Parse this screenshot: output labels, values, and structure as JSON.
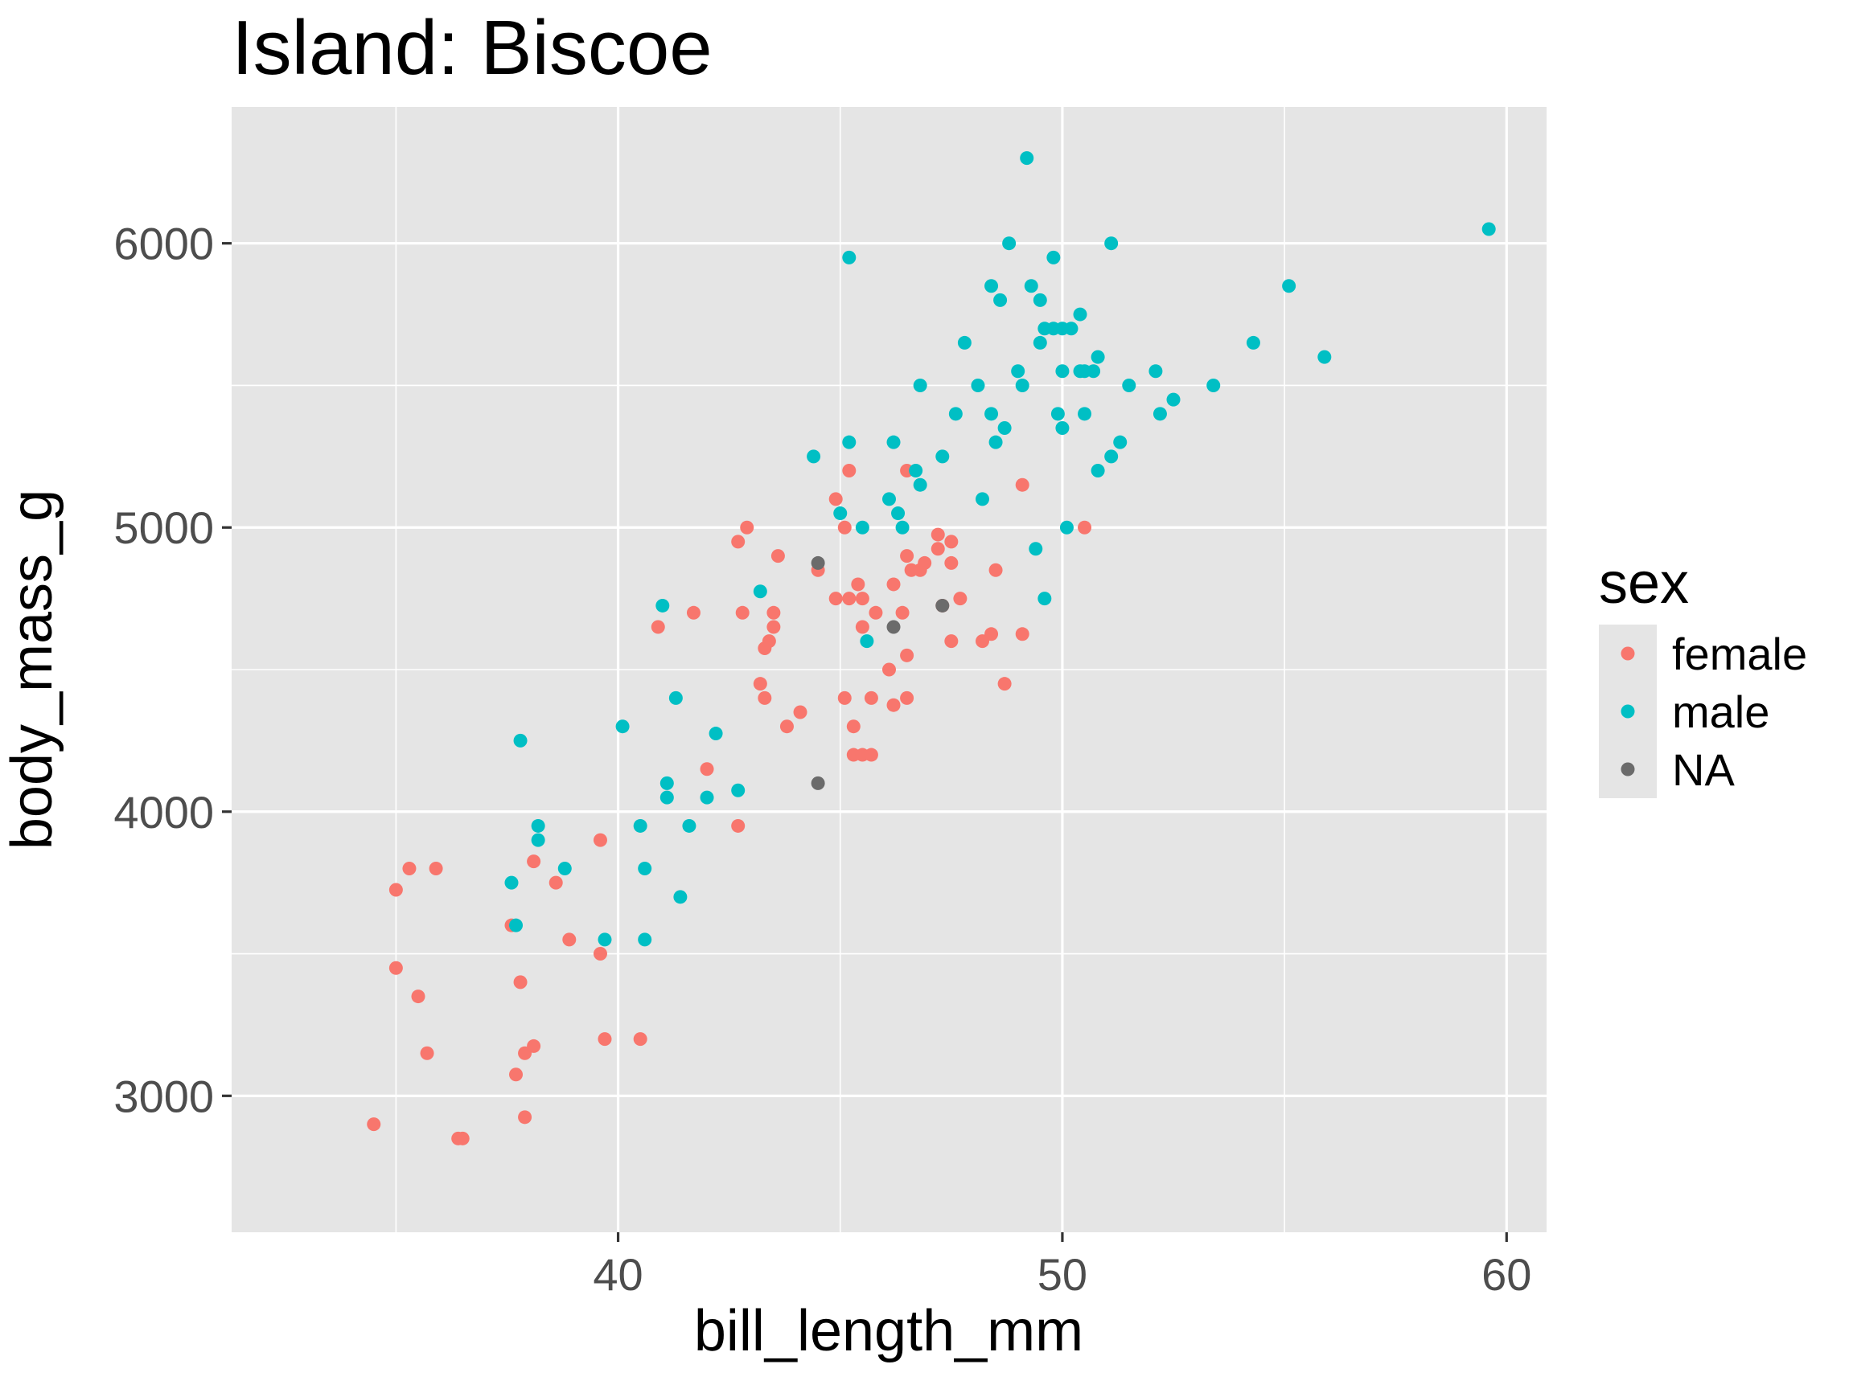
{
  "chart_data": {
    "type": "scatter",
    "title": "Island: Biscoe",
    "xlabel": "bill_length_mm",
    "ylabel": "body_mass_g",
    "xlim": [
      31.3,
      60.9
    ],
    "ylim": [
      2520,
      6480
    ],
    "x_ticks": [
      40,
      50,
      60
    ],
    "x_tick_labels": [
      "40",
      "50",
      "60"
    ],
    "x_minor_ticks": [
      35,
      45,
      55
    ],
    "y_ticks": [
      3000,
      4000,
      5000,
      6000
    ],
    "y_tick_labels": [
      "3000",
      "4000",
      "5000",
      "6000"
    ],
    "y_minor_ticks": [
      3500,
      4500,
      5500
    ],
    "grid": true,
    "panel_background": "#e5e5e5",
    "legend": {
      "title": "sex",
      "placement": "right",
      "entries": [
        "female",
        "male",
        "NA"
      ]
    },
    "series": [
      {
        "name": "female",
        "color": "#f8766d",
        "points": [
          [
            34.5,
            2900
          ],
          [
            35.0,
            3725
          ],
          [
            35.0,
            3450
          ],
          [
            35.3,
            3800
          ],
          [
            35.5,
            3350
          ],
          [
            35.7,
            3150
          ],
          [
            35.9,
            3800
          ],
          [
            36.4,
            2850
          ],
          [
            36.5,
            2850
          ],
          [
            37.6,
            3600
          ],
          [
            37.7,
            3075
          ],
          [
            37.8,
            3400
          ],
          [
            37.9,
            3150
          ],
          [
            37.9,
            2925
          ],
          [
            38.1,
            3825
          ],
          [
            38.1,
            3175
          ],
          [
            38.6,
            3750
          ],
          [
            38.9,
            3550
          ],
          [
            39.6,
            3900
          ],
          [
            39.6,
            3500
          ],
          [
            39.7,
            3200
          ],
          [
            40.5,
            3200
          ],
          [
            40.9,
            4650
          ],
          [
            41.7,
            4700
          ],
          [
            42.0,
            4150
          ],
          [
            42.7,
            3950
          ],
          [
            42.7,
            4950
          ],
          [
            42.8,
            4700
          ],
          [
            42.9,
            5000
          ],
          [
            43.2,
            4450
          ],
          [
            43.3,
            4400
          ],
          [
            43.3,
            4575
          ],
          [
            43.4,
            4600
          ],
          [
            43.5,
            4650
          ],
          [
            43.5,
            4700
          ],
          [
            43.6,
            4900
          ],
          [
            43.8,
            4300
          ],
          [
            44.1,
            4350
          ],
          [
            44.5,
            4850
          ],
          [
            44.9,
            5100
          ],
          [
            44.9,
            4750
          ],
          [
            45.1,
            4400
          ],
          [
            45.1,
            5000
          ],
          [
            45.2,
            5200
          ],
          [
            45.2,
            4750
          ],
          [
            45.3,
            4300
          ],
          [
            45.3,
            4200
          ],
          [
            45.4,
            4800
          ],
          [
            45.5,
            4200
          ],
          [
            45.5,
            4750
          ],
          [
            45.5,
            4650
          ],
          [
            45.7,
            4200
          ],
          [
            45.7,
            4400
          ],
          [
            45.8,
            4700
          ],
          [
            46.1,
            4500
          ],
          [
            46.2,
            4375
          ],
          [
            46.2,
            4800
          ],
          [
            46.4,
            4700
          ],
          [
            46.5,
            4400
          ],
          [
            46.5,
            4550
          ],
          [
            46.5,
            4900
          ],
          [
            46.5,
            5200
          ],
          [
            46.6,
            4850
          ],
          [
            46.8,
            4850
          ],
          [
            46.9,
            4875
          ],
          [
            47.2,
            4975
          ],
          [
            47.2,
            4925
          ],
          [
            47.3,
            4725
          ],
          [
            47.5,
            4950
          ],
          [
            47.5,
            4875
          ],
          [
            47.5,
            4600
          ],
          [
            47.7,
            4750
          ],
          [
            48.2,
            4600
          ],
          [
            48.4,
            4625
          ],
          [
            48.5,
            4850
          ],
          [
            48.7,
            4450
          ],
          [
            49.1,
            4625
          ],
          [
            49.1,
            5150
          ],
          [
            50.5,
            5000
          ]
        ]
      },
      {
        "name": "male",
        "color": "#00bfc4",
        "points": [
          [
            37.6,
            3750
          ],
          [
            37.7,
            3600
          ],
          [
            37.8,
            4250
          ],
          [
            38.2,
            3950
          ],
          [
            38.2,
            3900
          ],
          [
            38.8,
            3800
          ],
          [
            39.7,
            3550
          ],
          [
            40.1,
            4300
          ],
          [
            40.6,
            3550
          ],
          [
            40.6,
            3800
          ],
          [
            40.5,
            3950
          ],
          [
            41.0,
            4725
          ],
          [
            41.1,
            4100
          ],
          [
            41.1,
            4050
          ],
          [
            41.3,
            4400
          ],
          [
            41.4,
            3700
          ],
          [
            41.6,
            3950
          ],
          [
            42.0,
            4050
          ],
          [
            42.2,
            4275
          ],
          [
            42.7,
            4075
          ],
          [
            43.2,
            4775
          ],
          [
            44.4,
            5250
          ],
          [
            45.0,
            5050
          ],
          [
            45.2,
            5950
          ],
          [
            45.2,
            5300
          ],
          [
            45.5,
            5000
          ],
          [
            45.6,
            4600
          ],
          [
            46.1,
            5100
          ],
          [
            46.2,
            5300
          ],
          [
            46.3,
            5050
          ],
          [
            46.4,
            5000
          ],
          [
            46.7,
            5200
          ],
          [
            46.8,
            5500
          ],
          [
            46.8,
            5150
          ],
          [
            47.3,
            5250
          ],
          [
            47.6,
            5400
          ],
          [
            47.8,
            5650
          ],
          [
            48.1,
            5500
          ],
          [
            48.2,
            5100
          ],
          [
            48.4,
            5850
          ],
          [
            48.4,
            5400
          ],
          [
            48.5,
            5300
          ],
          [
            48.6,
            5800
          ],
          [
            48.7,
            5350
          ],
          [
            48.8,
            6000
          ],
          [
            49.0,
            5550
          ],
          [
            49.1,
            5500
          ],
          [
            49.2,
            6300
          ],
          [
            49.3,
            5850
          ],
          [
            49.4,
            4925
          ],
          [
            49.5,
            5650
          ],
          [
            49.5,
            5800
          ],
          [
            49.6,
            4750
          ],
          [
            49.6,
            5700
          ],
          [
            49.8,
            5700
          ],
          [
            49.8,
            5950
          ],
          [
            49.9,
            5400
          ],
          [
            50.0,
            5700
          ],
          [
            50.0,
            5550
          ],
          [
            50.0,
            5350
          ],
          [
            50.1,
            5000
          ],
          [
            50.2,
            5700
          ],
          [
            50.4,
            5750
          ],
          [
            50.4,
            5550
          ],
          [
            50.5,
            5550
          ],
          [
            50.5,
            5400
          ],
          [
            50.7,
            5550
          ],
          [
            50.8,
            5600
          ],
          [
            50.8,
            5200
          ],
          [
            51.1,
            6000
          ],
          [
            51.1,
            5250
          ],
          [
            51.3,
            5300
          ],
          [
            51.5,
            5500
          ],
          [
            52.1,
            5550
          ],
          [
            52.2,
            5400
          ],
          [
            52.5,
            5450
          ],
          [
            53.4,
            5500
          ],
          [
            54.3,
            5650
          ],
          [
            55.1,
            5850
          ],
          [
            55.9,
            5600
          ],
          [
            59.6,
            6050
          ]
        ]
      },
      {
        "name": "NA",
        "color": "#6b6b6b",
        "points": [
          [
            44.5,
            4875
          ],
          [
            44.5,
            4100
          ],
          [
            46.2,
            4650
          ],
          [
            47.3,
            4725
          ]
        ]
      }
    ]
  }
}
